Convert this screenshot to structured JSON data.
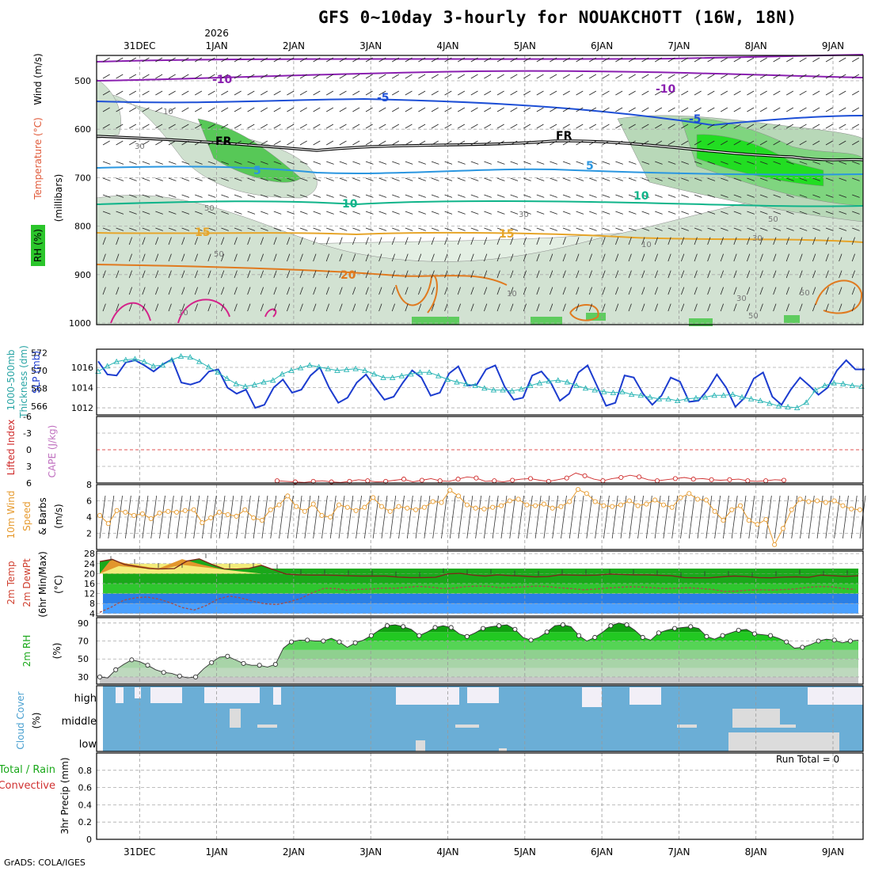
{
  "title": "GFS 0~10day 3-hourly for NOUAKCHOTT (16W, 18N)",
  "credit": "GrADS: COLA/IGES",
  "run_total": "Run Total = 0",
  "year_label": "2026",
  "dates": [
    "31DEC",
    "1JAN",
    "2JAN",
    "3JAN",
    "4JAN",
    "5JAN",
    "6JAN",
    "7JAN",
    "8JAN",
    "9JAN"
  ],
  "colors": {
    "slp": "#1c3ccf",
    "thickness": "#2ab5b5",
    "lifted": "#cf2b2b",
    "cape": "#cf2b2b",
    "wind": "#e69a2e",
    "temp_high": "#e2962c",
    "temp_band": "#f3ec7a",
    "rh_green": "#1fd21f",
    "cloud": "#6baed6",
    "clear": "#f2eff7",
    "gray_rh": "#c8c8c8"
  },
  "panels": {
    "profile": {
      "y_axis_labels": [
        "Temperature (°C)",
        "Wind (m/s)",
        "(millibars)",
        "RH (%)"
      ],
      "pressure_levels": [
        "500",
        "600",
        "700",
        "800",
        "900",
        "1000"
      ],
      "temperature_contour_labels": [
        "-10",
        "-10",
        "-5",
        "-5",
        "FR",
        "FR",
        "5",
        "5",
        "10",
        "10",
        "15",
        "15",
        "20"
      ],
      "rh_contour_labels": [
        "10",
        "30",
        "50",
        "30",
        "50",
        "10",
        "30",
        "10",
        "50",
        "30",
        "50",
        "10",
        "50"
      ]
    },
    "thickness": {
      "label_thick": "1000-500mb",
      "label_thick2": "Thickness (dm)",
      "label_slp": "SLP (mb)",
      "left_ticks": [
        "572",
        "570",
        "568",
        "566"
      ],
      "right_ticks": [
        "1016",
        "1014",
        "1012"
      ]
    },
    "instability": {
      "label_li": "Lifted Index",
      "label_cape": "CAPE (J/kg)",
      "ticks": [
        "-6",
        "-3",
        "0",
        "3",
        "6"
      ]
    },
    "wind10": {
      "label1": "10m Wind",
      "label2": "Speed",
      "label3": "& Barbs",
      "label4": "(m/s)",
      "ticks": [
        "8",
        "6",
        "4",
        "2"
      ]
    },
    "temp2m": {
      "label1": "2m Temp",
      "label2": "2m DewPt",
      "label3": "(6hr Min/Max)",
      "label4": "(°C)",
      "ticks": [
        "28",
        "24",
        "20",
        "16",
        "12",
        "8",
        "4"
      ]
    },
    "rh2m": {
      "label1": "2m RH",
      "label2": "(%)",
      "ticks": [
        "90",
        "70",
        "50",
        "30"
      ]
    },
    "cloud": {
      "label1": "Cloud Cover",
      "label2": "(%)",
      "levels": [
        "high",
        "middle",
        "low"
      ]
    },
    "precip": {
      "label1": "Total / Rain",
      "label2": "Convective",
      "label3": "3hr Precip (mm)",
      "ticks": [
        "0.8",
        "0.6",
        "0.4",
        "0.2",
        "0"
      ]
    }
  },
  "chart_data": [
    {
      "type": "line",
      "title": "1000-500mb Thickness (dm) / SLP (mb)",
      "x_unit": "days from 30DEC 00Z (3-hourly)",
      "series": [
        {
          "name": "SLP (mb)",
          "axis": "right",
          "ylim": [
            1011.3,
            1017.8
          ],
          "values": [
            1016.6,
            1015.3,
            1015.2,
            1016.5,
            1016.7,
            1016.2,
            1015.6,
            1016.3,
            1016.8,
            1014.5,
            1014.3,
            1014.6,
            1015.6,
            1015.8,
            1014.0,
            1013.4,
            1013.8,
            1012.0,
            1012.3,
            1014.0,
            1014.8,
            1013.5,
            1013.8,
            1015.2,
            1016.0,
            1014.0,
            1012.5,
            1013.0,
            1014.5,
            1015.3,
            1014.0,
            1012.8,
            1013.1,
            1014.5,
            1015.7,
            1015.0,
            1013.2,
            1013.5,
            1015.4,
            1016.1,
            1014.2,
            1014.3,
            1015.8,
            1016.2,
            1014.1,
            1012.8,
            1013.0,
            1015.2,
            1015.6,
            1014.5,
            1012.7,
            1013.4,
            1015.5,
            1016.2,
            1014.2,
            1012.2,
            1012.5,
            1015.2,
            1015.0,
            1013.4,
            1012.3,
            1013.2,
            1015.0,
            1014.6,
            1012.6,
            1012.7,
            1013.8,
            1015.3,
            1014.0,
            1012.1,
            1013.0,
            1014.9,
            1015.5,
            1013.1,
            1012.3,
            1013.8,
            1015.0,
            1014.2,
            1013.3,
            1014.0,
            1015.7,
            1016.7,
            1015.8,
            1015.8
          ]
        },
        {
          "name": "Thickness (dm)",
          "axis": "left",
          "ylim": [
            565.0,
            572.4
          ],
          "values": [
            569.9,
            570.5,
            571.0,
            571.2,
            571.3,
            571.0,
            570.5,
            570.6,
            571.2,
            571.6,
            571.5,
            571.0,
            570.4,
            569.8,
            569.1,
            568.5,
            568.2,
            568.4,
            568.7,
            568.9,
            569.6,
            570.0,
            570.3,
            570.6,
            570.4,
            570.2,
            570.0,
            570.1,
            570.2,
            570.0,
            569.6,
            569.2,
            569.2,
            569.4,
            569.6,
            569.8,
            569.8,
            569.4,
            569.0,
            568.7,
            568.5,
            568.3,
            568.0,
            567.8,
            567.8,
            567.7,
            567.9,
            568.3,
            568.6,
            568.8,
            568.9,
            568.7,
            568.3,
            568.0,
            567.8,
            567.6,
            567.5,
            567.6,
            567.3,
            567.2,
            567.0,
            566.8,
            566.8,
            566.6,
            566.8,
            566.9,
            567.0,
            567.2,
            567.2,
            567.3,
            567.0,
            566.8,
            566.6,
            566.3,
            566.0,
            565.9,
            565.8,
            566.4,
            567.8,
            568.3,
            568.6,
            568.5,
            568.3,
            568.2
          ]
        }
      ]
    },
    {
      "type": "line",
      "title": "10m Wind Speed (m/s)",
      "ylim": [
        0,
        8
      ],
      "series": [
        {
          "name": "10m Wind Speed",
          "values": [
            4.2,
            3.2,
            4.8,
            4.6,
            4.2,
            4.4,
            3.8,
            4.5,
            4.7,
            4.6,
            4.8,
            4.9,
            3.3,
            3.9,
            4.6,
            4.3,
            4.1,
            4.9,
            3.9,
            3.6,
            4.9,
            5.5,
            6.6,
            5.3,
            4.7,
            5.6,
            4.2,
            4.0,
            5.5,
            5.2,
            4.8,
            5.2,
            6.4,
            5.3,
            4.7,
            5.3,
            5.1,
            4.9,
            5.2,
            5.9,
            5.8,
            7.3,
            6.6,
            5.5,
            5.1,
            5.0,
            5.2,
            5.4,
            6.0,
            6.2,
            5.5,
            5.4,
            5.6,
            5.1,
            5.3,
            5.9,
            7.4,
            6.9,
            5.9,
            5.4,
            5.3,
            5.5,
            6.0,
            5.4,
            5.6,
            6.1,
            5.5,
            5.2,
            6.4,
            6.9,
            6.2,
            6.1,
            4.7,
            3.6,
            4.9,
            5.4,
            3.6,
            3.1,
            3.7,
            0.6,
            2.6,
            4.9,
            6.2,
            5.9,
            6.0,
            5.8,
            6.0,
            5.4,
            5.0,
            4.9
          ]
        }
      ]
    },
    {
      "type": "line",
      "title": "Lifted Index",
      "ylim": [
        -6,
        6
      ],
      "series": [
        {
          "name": "Lifted Index",
          "values": [
            5.6,
            5.7,
            5.8,
            5.9,
            5.7,
            5.6,
            5.8,
            5.9,
            5.7,
            5.4,
            5.6,
            5.8,
            5.7,
            5.5,
            5.3,
            5.8,
            5.5,
            5.2,
            5.6,
            5.7,
            5.3,
            4.9,
            5.1,
            5.7,
            5.6,
            5.8,
            5.5,
            5.3,
            5.2,
            5.5,
            5.7,
            5.4,
            5.1,
            4.2,
            4.7,
            5.3,
            5.6,
            5.2,
            5.0,
            4.6,
            4.9,
            5.4,
            5.6,
            5.4,
            5.2,
            5.0,
            5.3,
            5.2,
            5.4,
            5.5,
            5.4,
            5.3,
            5.6,
            5.7,
            5.6,
            5.4,
            5.5
          ]
        }
      ]
    },
    {
      "type": "area",
      "title": "2m Temp / 2m DewPt (°C)",
      "ylim": [
        3,
        29
      ],
      "series": [
        {
          "name": "2m Temp",
          "values": [
            24.8,
            25.7,
            23.6,
            22.8,
            22.0,
            21.9,
            22.0,
            25.0,
            25.9,
            23.7,
            21.9,
            21.8,
            22.1,
            23.3,
            21.5,
            19.8,
            19.5,
            19.4,
            19.4,
            19.3,
            19.1,
            19.0,
            19.0,
            19.0,
            18.6,
            18.4,
            18.4,
            18.5,
            19.9,
            20.1,
            19.4,
            19.0,
            19.5,
            19.2,
            19.0,
            18.7,
            18.8,
            19.5,
            19.4,
            19.3,
            19.4,
            19.8,
            19.6,
            19.5,
            19.5,
            19.3,
            19.1,
            18.4,
            18.3,
            18.3,
            18.7,
            19.0,
            18.8,
            18.4,
            18.3,
            18.6,
            18.7,
            18.5,
            19.4,
            19.1,
            18.9,
            19.1
          ]
        },
        {
          "name": "2m DewPt",
          "values": [
            4.5,
            6.6,
            9.3,
            10.3,
            10.6,
            9.8,
            8.3,
            6.4,
            5.4,
            7.2,
            9.8,
            11.0,
            10.2,
            8.9,
            7.9,
            7.6,
            8.6,
            10.0,
            12.3,
            14.1,
            14.0,
            13.3,
            13.7,
            13.8,
            14.2,
            14.1,
            14.5,
            14.9,
            14.6,
            14.0,
            14.2,
            14.8,
            15.0,
            14.9,
            14.3,
            14.5,
            14.7,
            15.0,
            14.8,
            14.3,
            14.0,
            13.5,
            13.8,
            14.2,
            14.5,
            14.7,
            14.6,
            14.3,
            14.0,
            14.2,
            14.3,
            14.0,
            13.6,
            12.8,
            13.0,
            13.4,
            13.5,
            13.4,
            13.6,
            13.9,
            14.5,
            14.8,
            14.7,
            14.0,
            13.7
          ]
        }
      ]
    },
    {
      "type": "area",
      "title": "2m RH (%)",
      "ylim": [
        22,
        96
      ],
      "series": [
        {
          "name": "2m RH",
          "values": [
            30,
            29,
            38,
            44,
            49,
            47,
            43,
            38,
            35,
            34,
            31,
            29,
            30,
            39,
            46,
            52,
            53,
            49,
            45,
            43,
            43,
            41,
            44,
            62,
            69,
            71,
            71,
            70,
            70,
            73,
            69,
            63,
            68,
            71,
            76,
            82,
            87,
            88,
            86,
            83,
            76,
            80,
            85,
            87,
            85,
            78,
            75,
            79,
            84,
            86,
            87,
            88,
            83,
            74,
            71,
            74,
            80,
            87,
            88,
            86,
            76,
            70,
            74,
            80,
            87,
            90,
            88,
            82,
            74,
            71,
            79,
            82,
            84,
            85,
            86,
            84,
            75,
            72,
            76,
            79,
            82,
            83,
            78,
            77,
            76,
            73,
            69,
            62,
            63,
            66,
            70,
            72,
            71,
            68,
            70,
            71
          ]
        }
      ]
    },
    {
      "type": "heatmap",
      "title": "Cloud Cover (%)",
      "rows": [
        "high",
        "middle",
        "low"
      ],
      "note": "mostly overcast (blue) with clear (white/gray) segments near 31DEC, 1-2JAN, 4-5JAN, 6-7JAN, 8-9JAN"
    },
    {
      "type": "bar",
      "title": "3hr Precip (mm)",
      "ylim": [
        0,
        1.0
      ],
      "series": [
        {
          "name": "Total / Rain",
          "values": []
        }
      ]
    }
  ]
}
